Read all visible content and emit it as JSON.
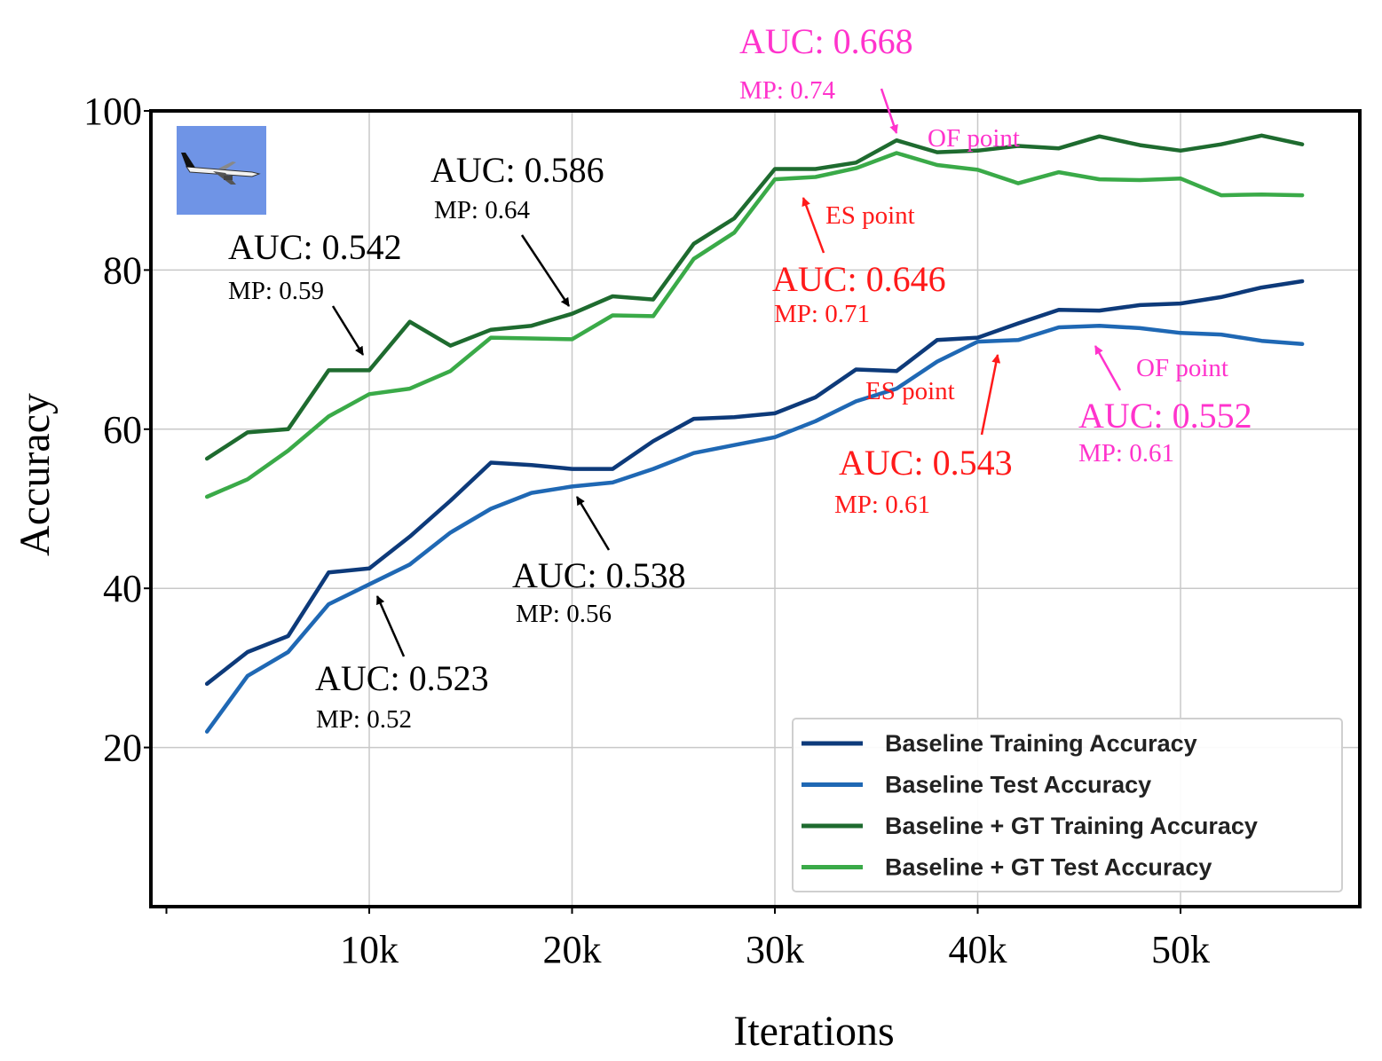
{
  "chart_data": {
    "type": "line",
    "xlabel": "Iterations",
    "ylabel": "Accuracy",
    "xlim": [
      0,
      58000
    ],
    "ylim": [
      0,
      100
    ],
    "x_ticks": [
      10000,
      20000,
      30000,
      40000,
      50000
    ],
    "x_tick_labels": [
      "10k",
      "20k",
      "30k",
      "40k",
      "50k"
    ],
    "y_ticks": [
      20,
      40,
      60,
      80,
      100
    ],
    "y_tick_labels": [
      "20",
      "40",
      "60",
      "80",
      "100"
    ],
    "grid": true,
    "legend_position": "bottom-right",
    "x": [
      2000,
      4000,
      6000,
      8000,
      10000,
      12000,
      14000,
      16000,
      18000,
      20000,
      22000,
      24000,
      26000,
      28000,
      30000,
      32000,
      34000,
      36000,
      38000,
      40000,
      42000,
      44000,
      46000,
      48000,
      50000,
      52000,
      54000,
      56000
    ],
    "series": [
      {
        "name": "Baseline Training Accuracy",
        "color": "#0d3a7a",
        "values": [
          28,
          32,
          34,
          42,
          42.5,
          46.5,
          51,
          55.8,
          55.5,
          55,
          55,
          58.5,
          61.3,
          61.5,
          62,
          64,
          67.5,
          67.3,
          71.2,
          71.5,
          73.3,
          75,
          74.9,
          75.6,
          75.8,
          76.6,
          77.8,
          78.6
        ]
      },
      {
        "name": "Baseline Test Accuracy",
        "color": "#1f68b4",
        "values": [
          22,
          29,
          32,
          38,
          40.5,
          43,
          47,
          50,
          52,
          52.8,
          53.3,
          55,
          57,
          58,
          59,
          61,
          63.5,
          65.1,
          68.5,
          71,
          71.2,
          72.8,
          73,
          72.7,
          72.1,
          71.9,
          71.1,
          70.7
        ]
      },
      {
        "name": "Baseline + GT Training Accuracy",
        "color": "#1e6b2f",
        "values": [
          56.3,
          59.6,
          60,
          67.4,
          67.4,
          73.5,
          70.5,
          72.5,
          73,
          74.5,
          76.7,
          76.3,
          83.3,
          86.5,
          92.7,
          92.7,
          93.5,
          96.3,
          94.8,
          95,
          95.6,
          95.3,
          96.8,
          95.7,
          95,
          95.8,
          96.9,
          95.8
        ]
      },
      {
        "name": "Baseline + GT Test Accuracy",
        "color": "#3aaa48",
        "values": [
          51.5,
          53.7,
          57.3,
          61.6,
          64.4,
          65.1,
          67.3,
          71.5,
          71.4,
          71.3,
          74.3,
          74.2,
          81.4,
          84.7,
          91.4,
          91.7,
          92.8,
          94.7,
          93.2,
          92.6,
          90.9,
          92.3,
          91.4,
          91.3,
          91.5,
          89.4,
          89.5,
          89.4
        ]
      }
    ],
    "annotations": [
      {
        "auc": "AUC: 0.542",
        "mp": "MP: 0.59",
        "color": "#000000"
      },
      {
        "auc": "AUC: 0.586",
        "mp": "MP: 0.64",
        "color": "#000000"
      },
      {
        "auc": "AUC: 0.523",
        "mp": "MP: 0.52",
        "color": "#000000"
      },
      {
        "auc": "AUC: 0.538",
        "mp": "MP: 0.56",
        "color": "#000000"
      },
      {
        "auc": "AUC: 0.668",
        "mp": "MP: 0.74",
        "point": "OF point",
        "color": "#ff33cc"
      },
      {
        "auc": "AUC: 0.646",
        "mp": "MP: 0.71",
        "point": "ES point",
        "color": "#ff1a1a"
      },
      {
        "auc": "AUC: 0.543",
        "mp": "MP: 0.61",
        "point": "ES point",
        "color": "#ff1a1a"
      },
      {
        "auc": "AUC: 0.552",
        "mp": "MP: 0.61",
        "point": "OF point",
        "color": "#ff33cc"
      }
    ]
  }
}
